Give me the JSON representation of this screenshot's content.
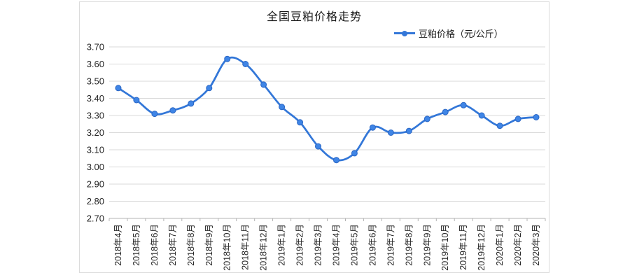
{
  "window": {
    "background": "#ffffff"
  },
  "chart_data": {
    "type": "line",
    "title": "全国豆粕价格走势",
    "legend": {
      "label": "豆粕价格（元/公斤）",
      "position": "top-right"
    },
    "xlabel": "",
    "ylabel": "",
    "categories": [
      "2018年4月",
      "2018年5月",
      "2018年6月",
      "2018年7月",
      "2018年8月",
      "2018年9月",
      "2018年10月",
      "2018年11月",
      "2018年12月",
      "2019年1月",
      "2019年2月",
      "2019年3月",
      "2019年4月",
      "2019年5月",
      "2019年6月",
      "2019年7月",
      "2019年8月",
      "2019年9月",
      "2019年10月",
      "2019年11月",
      "2019年12月",
      "2020年1月",
      "2020年2月",
      "2020年3月"
    ],
    "series": [
      {
        "name": "豆粕价格（元/公斤）",
        "values": [
          3.46,
          3.39,
          3.31,
          3.33,
          3.37,
          3.46,
          3.63,
          3.6,
          3.48,
          3.35,
          3.26,
          3.12,
          3.04,
          3.08,
          3.23,
          3.2,
          3.21,
          3.28,
          3.32,
          3.36,
          3.3,
          3.24,
          3.28,
          3.29
        ]
      }
    ],
    "ylim": [
      2.7,
      3.7
    ],
    "ytick_step": 0.1,
    "ytick_labels": [
      "3.70",
      "3.60",
      "3.50",
      "3.40",
      "3.30",
      "3.20",
      "3.10",
      "3.00",
      "2.90",
      "2.80",
      "2.70"
    ],
    "grid": true,
    "line_style": "smooth",
    "marker": "circle",
    "x_labels_rotated": -90,
    "colors": {
      "line": "#3377d8",
      "marker_fill": "#3f85e6",
      "marker_stroke": "#2a66c4",
      "grid": "#d9d9d9",
      "axis": "#b3b3b3",
      "text": "#262626",
      "frame_border": "#dcdcdc"
    }
  }
}
